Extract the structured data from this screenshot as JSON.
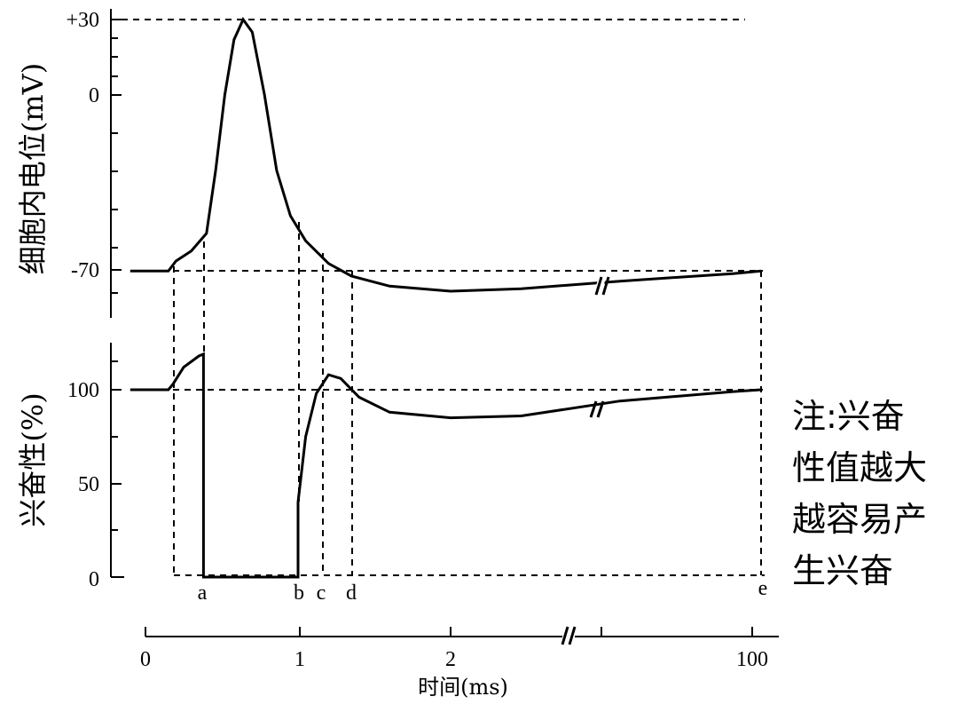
{
  "chart_data": [
    {
      "type": "line",
      "ylabel": "细胞内电位(mV)",
      "yticks": [
        "+30",
        "0",
        "-70"
      ],
      "ytick_values": [
        30,
        0,
        -70
      ],
      "series": [
        {
          "points": [
            [
              -0.1,
              -70
            ],
            [
              0.15,
              -70
            ],
            [
              0.2,
              -66
            ],
            [
              0.3,
              -62
            ],
            [
              0.4,
              -55
            ],
            [
              0.46,
              -30
            ],
            [
              0.52,
              0
            ],
            [
              0.58,
              22
            ],
            [
              0.64,
              30
            ],
            [
              0.7,
              25
            ],
            [
              0.78,
              0
            ],
            [
              0.86,
              -30
            ],
            [
              0.95,
              -48
            ],
            [
              1.05,
              -58
            ],
            [
              1.2,
              -67
            ],
            [
              1.35,
              -72
            ],
            [
              1.6,
              -76
            ],
            [
              2.0,
              -78
            ],
            [
              2.5,
              -77
            ],
            [
              3.2,
              -74
            ],
            [
              4.0,
              -71
            ],
            [
              4.2,
              -70
            ]
          ]
        }
      ]
    },
    {
      "type": "line",
      "ylabel": "兴奋性(%)",
      "yticks": [
        "100",
        "50",
        "0"
      ],
      "ytick_values": [
        100,
        50,
        0
      ],
      "series": [
        {
          "points": [
            [
              -0.1,
              100
            ],
            [
              0.15,
              100
            ],
            [
              0.18,
              103
            ],
            [
              0.25,
              112
            ],
            [
              0.35,
              118
            ],
            [
              0.38,
              119
            ],
            [
              0.38,
              0
            ],
            [
              1.0,
              0
            ],
            [
              1.0,
              40
            ],
            [
              1.05,
              75
            ],
            [
              1.12,
              98
            ],
            [
              1.2,
              108
            ],
            [
              1.28,
              106
            ],
            [
              1.4,
              96
            ],
            [
              1.6,
              88
            ],
            [
              2.0,
              85
            ],
            [
              2.5,
              86
            ],
            [
              3.2,
              94
            ],
            [
              4.0,
              99
            ],
            [
              4.2,
              100
            ]
          ]
        }
      ]
    }
  ],
  "time_axis": {
    "label": "时间(ms)",
    "ticks": [
      "0",
      "1",
      "2",
      "100"
    ]
  },
  "markers": [
    "a",
    "b",
    "c",
    "d",
    "e"
  ],
  "note_lines": [
    "注:兴奋",
    "性值越大",
    "越容易产",
    "生兴奋"
  ]
}
